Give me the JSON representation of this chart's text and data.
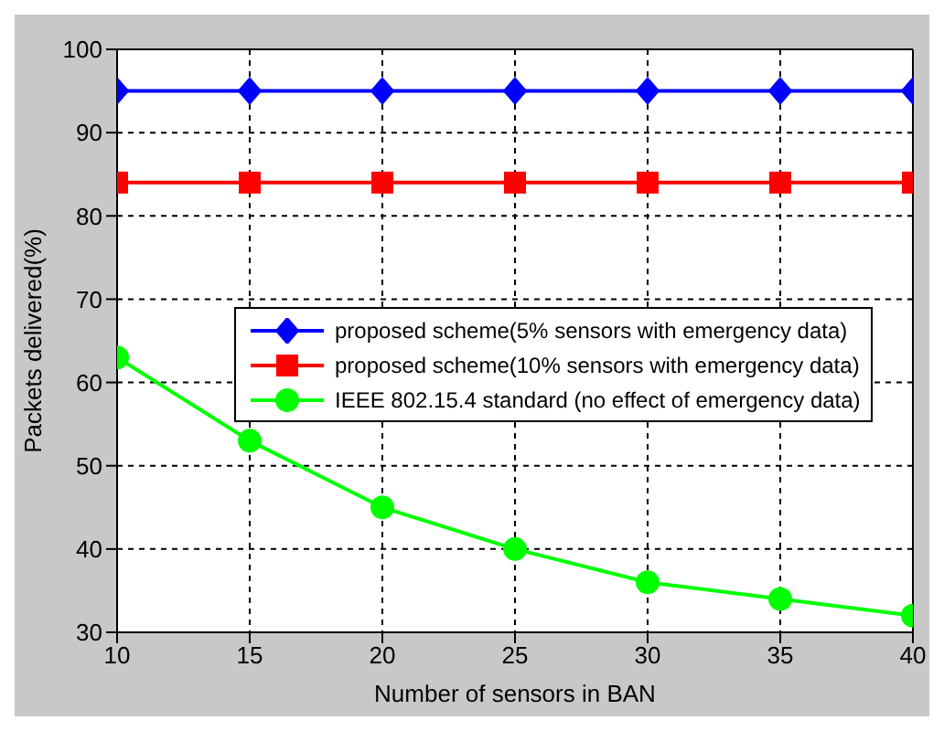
{
  "chart_data": {
    "type": "line",
    "xlabel": "Number of sensors in BAN",
    "ylabel": "Packets delivered(%)",
    "x": [
      10,
      15,
      20,
      25,
      30,
      35,
      40
    ],
    "series": [
      {
        "name": "proposed scheme(5% sensors with emergency data)",
        "color": "#0000ff",
        "marker": "diamond",
        "values": [
          95,
          95,
          95,
          95,
          95,
          95,
          95
        ]
      },
      {
        "name": "proposed scheme(10% sensors with emergency data)",
        "color": "#ff0000",
        "marker": "square",
        "values": [
          84,
          84,
          84,
          84,
          84,
          84,
          84
        ]
      },
      {
        "name": "IEEE 802.15.4 standard (no effect of emergency data)",
        "color": "#00ff00",
        "marker": "circle",
        "values": [
          63,
          53,
          45,
          40,
          36,
          34,
          32
        ]
      }
    ],
    "xlim": [
      10,
      40
    ],
    "xticks": [
      10,
      15,
      20,
      25,
      30,
      35,
      40
    ],
    "ylim": [
      30,
      100
    ],
    "yticks": [
      30,
      40,
      50,
      60,
      70,
      80,
      90,
      100
    ],
    "grid": true,
    "legend": "right",
    "line_style": "solid"
  }
}
